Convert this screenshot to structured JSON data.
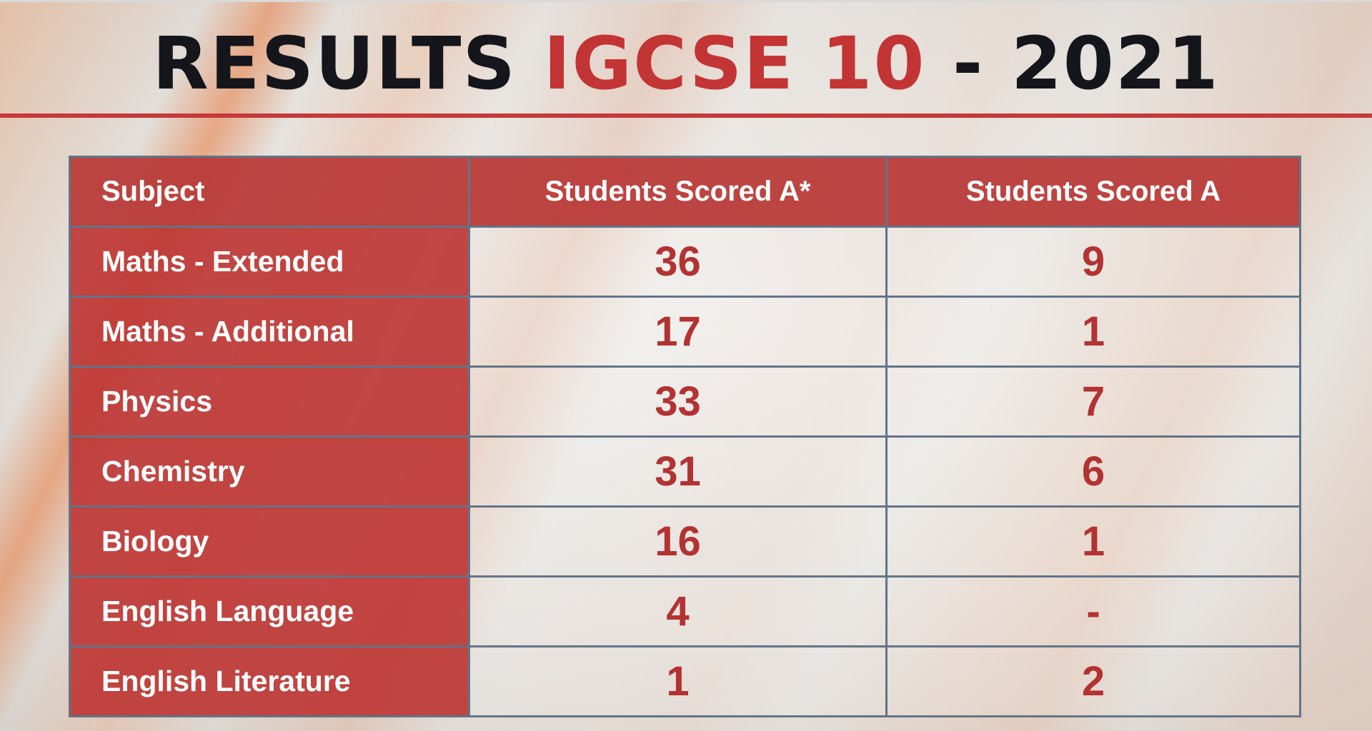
{
  "title": {
    "part1": "RESULTS",
    "part2": "IGCSE 10",
    "part3": "- 2021"
  },
  "colors": {
    "accent_red": "#c33434",
    "table_border": "#627488",
    "title_dark": "#15161c"
  },
  "table": {
    "headers": [
      "Subject",
      "Students Scored A*",
      "Students Scored A"
    ],
    "rows": [
      {
        "subject": "Maths - Extended",
        "a_star": "36",
        "a": "9"
      },
      {
        "subject": "Maths - Additional",
        "a_star": "17",
        "a": "1"
      },
      {
        "subject": "Physics",
        "a_star": "33",
        "a": "7"
      },
      {
        "subject": "Chemistry",
        "a_star": "31",
        "a": "6"
      },
      {
        "subject": "Biology",
        "a_star": "16",
        "a": "1"
      },
      {
        "subject": "English Language",
        "a_star": "4",
        "a": "-"
      },
      {
        "subject": "English Literature",
        "a_star": "1",
        "a": "2"
      }
    ]
  }
}
